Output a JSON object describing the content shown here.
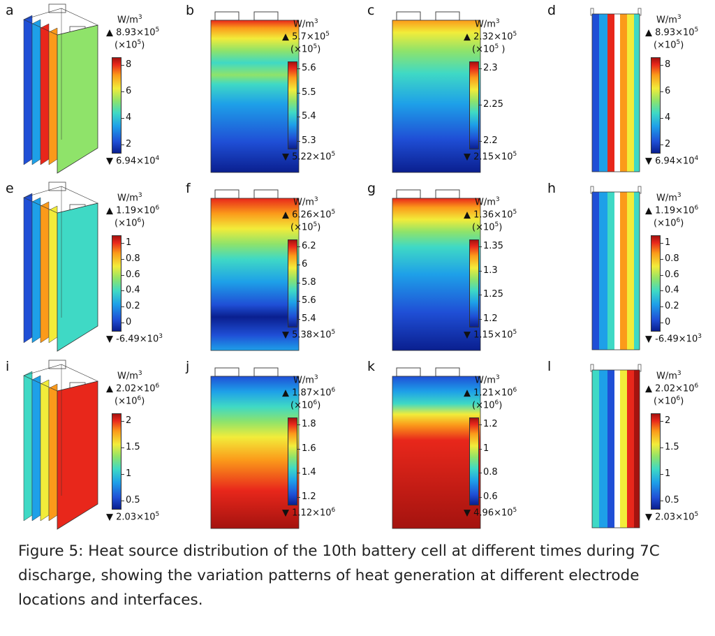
{
  "figure": {
    "caption": "Figure 5: Heat source distribution of the 10th battery cell at different times during 7C discharge, showing the variation patterns of heat generation at different electrode locations and interfaces.",
    "panels": [
      {
        "label": "a",
        "view": "3d",
        "unit": "W/m",
        "unit_exp": "3",
        "max_label": "8.93×10",
        "max_exp": "5",
        "scale": "(×10",
        "scale_exp": "5",
        "scale_close": ")",
        "min_label": "6.94×10",
        "min_exp": "4",
        "ticks": [
          "8",
          "6",
          "4",
          "2"
        ]
      },
      {
        "label": "b",
        "view": "front",
        "unit": "W/m",
        "unit_exp": "3",
        "max_label": "5.7×10",
        "max_exp": "5",
        "scale": "(×10",
        "scale_exp": "5",
        "scale_close": ")",
        "min_label": "5.22×10",
        "min_exp": "5",
        "ticks": [
          "5.6",
          "5.5",
          "5.4",
          "5.3"
        ]
      },
      {
        "label": "c",
        "view": "front",
        "unit": "W/m",
        "unit_exp": "3",
        "max_label": "2.32×10",
        "max_exp": "5",
        "scale": "(×10",
        "scale_exp": "5",
        "scale_close": " )",
        "min_label": "2.15×10",
        "min_exp": "5",
        "ticks": [
          "2.3",
          "2.25",
          "2.2"
        ]
      },
      {
        "label": "d",
        "view": "side",
        "unit": "W/m",
        "unit_exp": "3",
        "max_label": "8.93×10",
        "max_exp": "5",
        "scale": "(×10",
        "scale_exp": "5",
        "scale_close": ")",
        "min_label": "6.94×10",
        "min_exp": "4",
        "ticks": [
          "8",
          "6",
          "4",
          "2"
        ]
      },
      {
        "label": "e",
        "view": "3d",
        "unit": "W/m",
        "unit_exp": "3",
        "max_label": "1.19×10",
        "max_exp": "6",
        "scale": "(×10",
        "scale_exp": "6",
        "scale_close": ")",
        "min_label": "-6.49×10",
        "min_exp": "3",
        "ticks": [
          "1",
          "0.8",
          "0.6",
          "0.4",
          "0.2",
          "0"
        ]
      },
      {
        "label": "f",
        "view": "front",
        "unit": "W/m",
        "unit_exp": "3",
        "max_label": "6.26×10",
        "max_exp": "5",
        "scale": "(×10",
        "scale_exp": "5",
        "scale_close": ")",
        "min_label": "5.38×10",
        "min_exp": "5",
        "ticks": [
          "6.2",
          "6",
          "5.8",
          "5.6",
          "5.4"
        ]
      },
      {
        "label": "g",
        "view": "front",
        "unit": "W/m",
        "unit_exp": "3",
        "max_label": "1.36×10",
        "max_exp": "5",
        "scale": "(×10",
        "scale_exp": "5",
        "scale_close": ")",
        "min_label": "1.15×10",
        "min_exp": "5",
        "ticks": [
          "1.35",
          "1.3",
          "1.25",
          "1.2"
        ]
      },
      {
        "label": "h",
        "view": "side",
        "unit": "W/m",
        "unit_exp": "3",
        "max_label": "1.19×10",
        "max_exp": "6",
        "scale": "(×10",
        "scale_exp": "6",
        "scale_close": ")",
        "min_label": "-6.49×10",
        "min_exp": "3",
        "ticks": [
          "1",
          "0.8",
          "0.6",
          "0.4",
          "0.2",
          "0"
        ]
      },
      {
        "label": "i",
        "view": "3d",
        "unit": "W/m",
        "unit_exp": "3",
        "max_label": "2.02×10",
        "max_exp": "6",
        "scale": "(×10",
        "scale_exp": "6",
        "scale_close": ")",
        "min_label": "2.03×10",
        "min_exp": "5",
        "ticks": [
          "2",
          "1.5",
          "1",
          "0.5"
        ]
      },
      {
        "label": "j",
        "view": "front",
        "unit": "W/m",
        "unit_exp": "3",
        "max_label": "1.87×10",
        "max_exp": "6",
        "scale": "(×10",
        "scale_exp": "6",
        "scale_close": ")",
        "min_label": "1.12×10",
        "min_exp": "6",
        "ticks": [
          "1.8",
          "1.6",
          "1.4",
          "1.2"
        ]
      },
      {
        "label": "k",
        "view": "front",
        "unit": "W/m",
        "unit_exp": "3",
        "max_label": "1.21×10",
        "max_exp": "6",
        "scale": "(×10",
        "scale_exp": "6",
        "scale_close": ")",
        "min_label": "4.96×10",
        "min_exp": "5",
        "ticks": [
          "1.2",
          "1",
          "0.8",
          "0.6"
        ]
      },
      {
        "label": "l",
        "view": "side",
        "unit": "W/m",
        "unit_exp": "3",
        "max_label": "2.02×10",
        "max_exp": "6",
        "scale": "(×10",
        "scale_exp": "6",
        "scale_close": ")",
        "min_label": "2.03×10",
        "min_exp": "5",
        "ticks": [
          "2",
          "1.5",
          "1",
          "0.5"
        ]
      }
    ]
  }
}
